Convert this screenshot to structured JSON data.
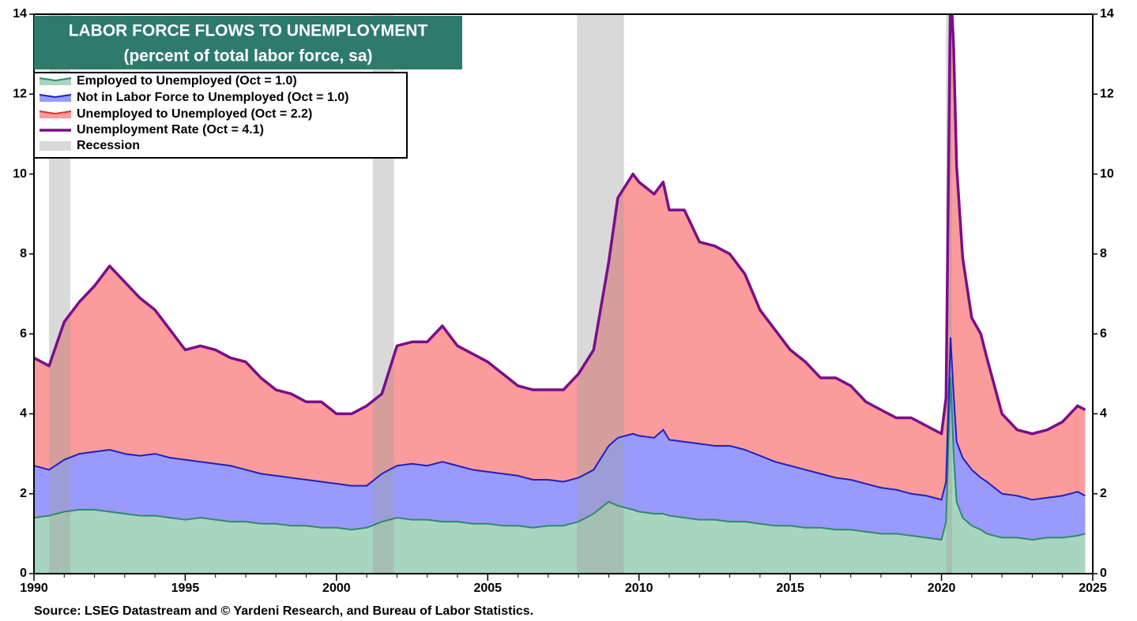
{
  "chart_data": {
    "type": "stacked_area",
    "title": "LABOR FORCE FLOWS TO UNEMPLOYMENT",
    "subtitle": "(percent of total labor force, sa)",
    "source": "Source: LSEG Datastream and © Yardeni Research, and Bureau of Labor Statistics.",
    "x": [
      1990.0,
      1990.5,
      1991.0,
      1991.5,
      1992.0,
      1992.5,
      1993.0,
      1993.5,
      1994.0,
      1994.5,
      1995.0,
      1995.5,
      1996.0,
      1996.5,
      1997.0,
      1997.5,
      1998.0,
      1998.5,
      1999.0,
      1999.5,
      2000.0,
      2000.5,
      2001.0,
      2001.5,
      2002.0,
      2002.5,
      2003.0,
      2003.5,
      2004.0,
      2004.5,
      2005.0,
      2005.5,
      2006.0,
      2006.5,
      2007.0,
      2007.5,
      2008.0,
      2008.5,
      2009.0,
      2009.3,
      2009.8,
      2010.0,
      2010.5,
      2010.8,
      2011.0,
      2011.5,
      2012.0,
      2012.5,
      2013.0,
      2013.5,
      2014.0,
      2014.5,
      2015.0,
      2015.5,
      2016.0,
      2016.5,
      2017.0,
      2017.5,
      2018.0,
      2018.5,
      2019.0,
      2019.5,
      2020.0,
      2020.15,
      2020.3,
      2020.4,
      2020.5,
      2020.7,
      2021.0,
      2021.3,
      2021.5,
      2022.0,
      2022.5,
      2023.0,
      2023.5,
      2024.0,
      2024.5,
      2024.75
    ],
    "series": [
      {
        "name": "Employed to Unemployed (Oct = 1.0)",
        "color": "#2e8b6a",
        "fill": "#a8d5bf",
        "stacked": true,
        "values": [
          1.4,
          1.45,
          1.55,
          1.6,
          1.6,
          1.55,
          1.5,
          1.45,
          1.45,
          1.4,
          1.35,
          1.4,
          1.35,
          1.3,
          1.3,
          1.25,
          1.25,
          1.2,
          1.2,
          1.15,
          1.15,
          1.1,
          1.15,
          1.3,
          1.4,
          1.35,
          1.35,
          1.3,
          1.3,
          1.25,
          1.25,
          1.2,
          1.2,
          1.15,
          1.2,
          1.2,
          1.3,
          1.5,
          1.8,
          1.7,
          1.6,
          1.55,
          1.5,
          1.5,
          1.45,
          1.4,
          1.35,
          1.35,
          1.3,
          1.3,
          1.25,
          1.2,
          1.2,
          1.15,
          1.15,
          1.1,
          1.1,
          1.05,
          1.0,
          1.0,
          0.95,
          0.9,
          0.85,
          1.3,
          4.9,
          3.0,
          1.8,
          1.4,
          1.2,
          1.1,
          1.0,
          0.9,
          0.9,
          0.85,
          0.9,
          0.9,
          0.95,
          1.0
        ]
      },
      {
        "name": "Not in Labor Force to Unemployed (Oct = 1.0)",
        "color": "#2020c0",
        "fill": "#9a9afc",
        "stacked": true,
        "values": [
          1.3,
          1.15,
          1.3,
          1.4,
          1.45,
          1.55,
          1.5,
          1.5,
          1.55,
          1.5,
          1.5,
          1.4,
          1.4,
          1.4,
          1.3,
          1.25,
          1.2,
          1.2,
          1.15,
          1.15,
          1.1,
          1.1,
          1.05,
          1.2,
          1.3,
          1.4,
          1.35,
          1.5,
          1.4,
          1.35,
          1.3,
          1.3,
          1.25,
          1.2,
          1.15,
          1.1,
          1.1,
          1.1,
          1.4,
          1.7,
          1.9,
          1.9,
          1.9,
          2.1,
          1.9,
          1.9,
          1.9,
          1.85,
          1.9,
          1.8,
          1.7,
          1.6,
          1.5,
          1.45,
          1.35,
          1.3,
          1.25,
          1.2,
          1.15,
          1.1,
          1.05,
          1.05,
          1.0,
          1.0,
          1.0,
          1.5,
          1.5,
          1.5,
          1.4,
          1.3,
          1.3,
          1.1,
          1.05,
          1.0,
          1.0,
          1.05,
          1.1,
          0.95
        ]
      },
      {
        "name": "Unemployed to Unemployed (Oct = 2.2)",
        "color": "#e03030",
        "fill": "#fb9b9b",
        "stacked": true,
        "values": [
          2.7,
          2.6,
          3.45,
          3.8,
          4.15,
          4.6,
          4.3,
          3.95,
          3.6,
          3.2,
          2.75,
          2.9,
          2.85,
          2.7,
          2.7,
          2.4,
          2.15,
          2.1,
          1.95,
          2.0,
          1.75,
          1.8,
          2.0,
          2.0,
          3.0,
          3.05,
          3.1,
          3.4,
          3.0,
          2.9,
          2.75,
          2.5,
          2.25,
          2.25,
          2.25,
          2.3,
          2.6,
          3.0,
          4.6,
          6.0,
          6.5,
          6.35,
          6.1,
          6.2,
          5.75,
          5.8,
          5.05,
          5.0,
          4.8,
          4.4,
          3.65,
          3.3,
          2.9,
          2.7,
          2.4,
          2.5,
          2.35,
          2.05,
          1.95,
          1.8,
          1.9,
          1.75,
          1.65,
          2.1,
          8.9,
          8.7,
          6.9,
          5.0,
          3.8,
          3.6,
          3.1,
          2.0,
          1.65,
          1.65,
          1.7,
          1.85,
          2.15,
          2.15
        ]
      },
      {
        "name": "Unemployment Rate (Oct = 4.1)",
        "color": "#7a0e8a",
        "stacked": false,
        "values": [
          5.4,
          5.2,
          6.3,
          6.8,
          7.2,
          7.7,
          7.3,
          6.9,
          6.6,
          6.1,
          5.6,
          5.7,
          5.6,
          5.4,
          5.3,
          4.9,
          4.6,
          4.5,
          4.3,
          4.3,
          4.0,
          4.0,
          4.2,
          4.5,
          5.7,
          5.8,
          5.8,
          6.2,
          5.7,
          5.5,
          5.3,
          5.0,
          4.7,
          4.6,
          4.6,
          4.6,
          5.0,
          5.6,
          7.8,
          9.4,
          10.0,
          9.8,
          9.5,
          9.8,
          9.1,
          9.1,
          8.3,
          8.2,
          8.0,
          7.5,
          6.6,
          6.1,
          5.6,
          5.3,
          4.9,
          4.9,
          4.7,
          4.3,
          4.1,
          3.9,
          3.9,
          3.7,
          3.5,
          4.4,
          14.8,
          13.2,
          10.2,
          7.9,
          6.4,
          6.0,
          5.4,
          4.0,
          3.6,
          3.5,
          3.6,
          3.8,
          4.2,
          4.1
        ]
      }
    ],
    "recession_label": "Recession",
    "recession_color": "#a0a0a0",
    "recessions": [
      [
        1990.5,
        1991.2
      ],
      [
        2001.2,
        2001.9
      ],
      [
        2007.95,
        2009.5
      ],
      [
        2020.15,
        2020.35
      ]
    ],
    "xlim": [
      1990,
      2025
    ],
    "xticks": [
      1990,
      1995,
      2000,
      2005,
      2010,
      2015,
      2020,
      2025
    ],
    "ylim": [
      0,
      14
    ],
    "yticks": [
      0,
      2,
      4,
      6,
      8,
      10,
      12,
      14
    ],
    "y2lim": [
      0,
      14
    ],
    "y2ticks": [
      0,
      2,
      4,
      6,
      8,
      10,
      12,
      14
    ],
    "legend": "upper left"
  }
}
